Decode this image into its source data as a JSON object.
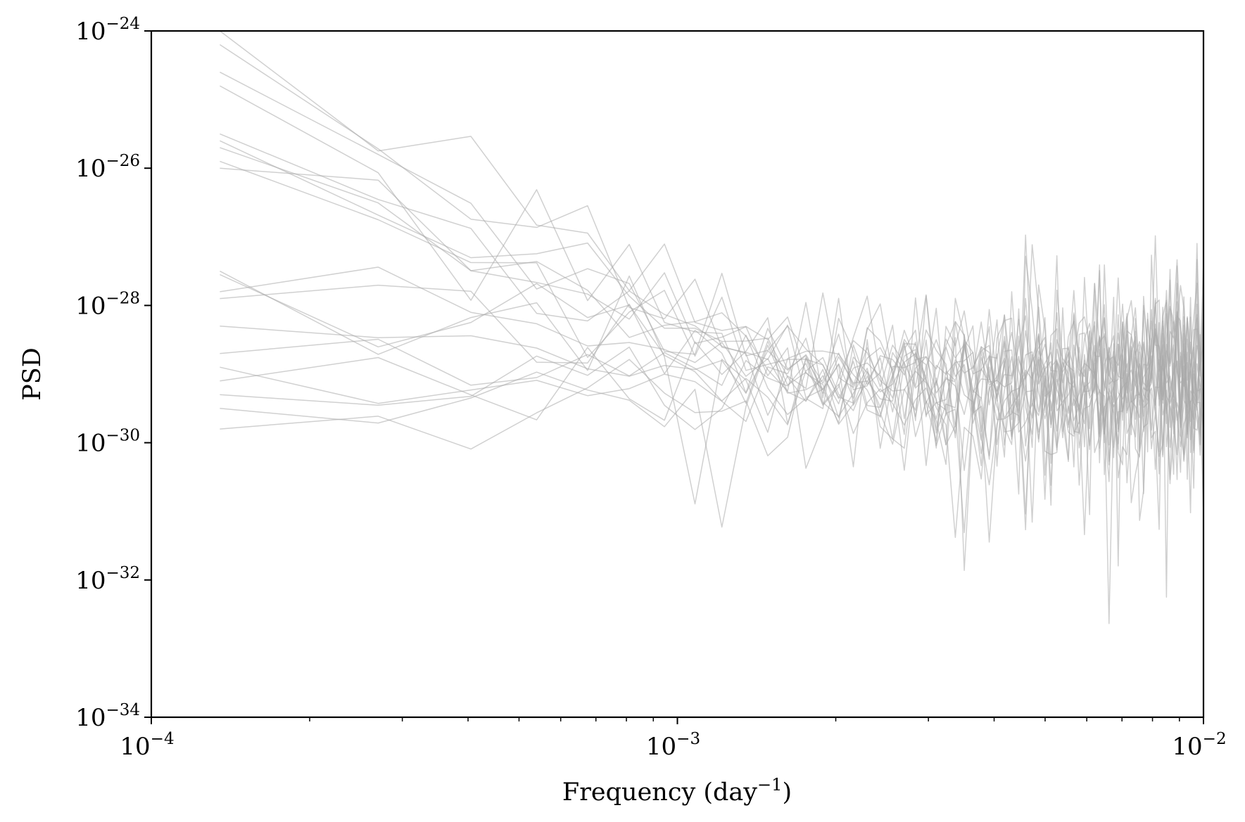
{
  "chart_data": {
    "type": "line",
    "title": "",
    "xlabel": "Frequency (day⁻¹)",
    "xlabel_base": "Frequency (day",
    "xlabel_exp": "−1",
    "xlabel_close": ")",
    "ylabel": "PSD",
    "xscale": "log",
    "yscale": "log",
    "xlim": [
      0.0001,
      0.01
    ],
    "ylim": [
      1e-34,
      1e-24
    ],
    "grid": false,
    "legend": "none",
    "line_color": "#aaaaaa",
    "line_opacity": 0.55,
    "x_ticks": [
      {
        "value": 0.0001,
        "base": "10",
        "exp": "−4"
      },
      {
        "value": 0.001,
        "base": "10",
        "exp": "−3"
      },
      {
        "value": 0.01,
        "base": "10",
        "exp": "−2"
      }
    ],
    "y_ticks": [
      {
        "value": 1e-24,
        "base": "10",
        "exp": "−24"
      },
      {
        "value": 1e-26,
        "base": "10",
        "exp": "−26"
      },
      {
        "value": 1e-28,
        "base": "10",
        "exp": "−28"
      },
      {
        "value": 1e-30,
        "base": "10",
        "exp": "−30"
      },
      {
        "value": 1e-32,
        "base": "10",
        "exp": "−32"
      },
      {
        "value": 1e-34,
        "base": "10",
        "exp": "−34"
      }
    ],
    "frequency_step": 0.000135,
    "series_count": 20,
    "series_log10_at_first_frequency": [
      -24.0,
      -24.2,
      -24.6,
      -24.8,
      -25.5,
      -25.6,
      -25.7,
      -25.9,
      -26.0,
      -27.5,
      -27.55,
      -27.8,
      -27.9,
      -28.3,
      -28.7,
      -28.9,
      -29.1,
      -29.3,
      -29.5,
      -29.8
    ],
    "plateau_log10": -29.1,
    "plateau_spread": 0.75
  }
}
